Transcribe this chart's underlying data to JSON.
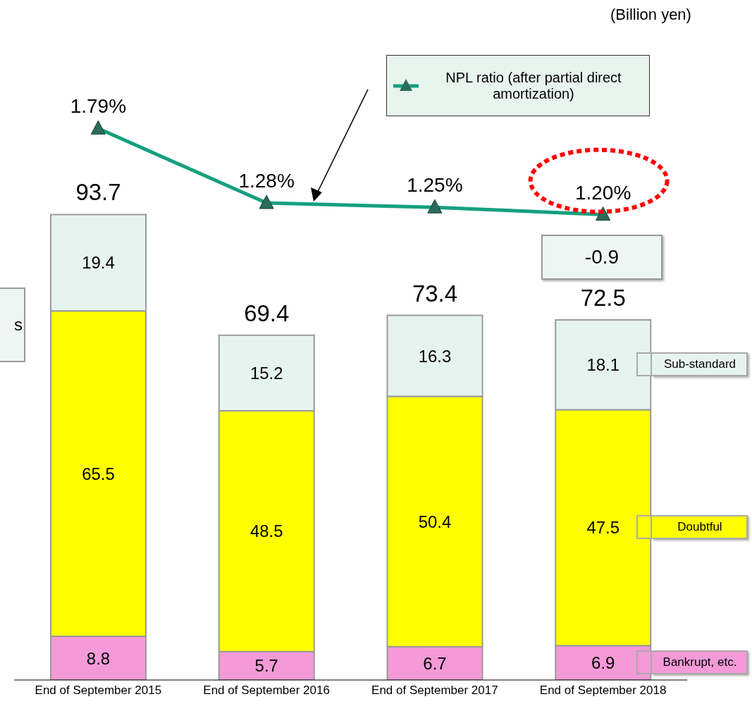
{
  "chart_data": {
    "type": "bar",
    "stacked": true,
    "data_labels": true,
    "legend": "right",
    "marker": "triangle",
    "categories": [
      "End of September 2015",
      "End of September 2016",
      "End of September 2017",
      "End of September 2018"
    ],
    "series": [
      {
        "name": "Bankrupt, etc.",
        "color": "#f49ad8",
        "values": [
          8.8,
          5.7,
          6.7,
          6.9
        ]
      },
      {
        "name": "Doubtful",
        "color": "#ffff00",
        "values": [
          65.5,
          48.5,
          50.4,
          47.5
        ]
      },
      {
        "name": "Sub-standard",
        "color": "#e6f4f0",
        "values": [
          19.4,
          15.2,
          16.3,
          18.1
        ]
      },
      {
        "name": "NPL ratio (after partial direct amortization)",
        "type": "line",
        "axis": "y2",
        "color": "#15a07f",
        "values": [
          1.79,
          1.28,
          1.25,
          1.2
        ],
        "value_labels": [
          "1.79%",
          "1.28%",
          "1.25%",
          "1.20%"
        ]
      }
    ],
    "totals": [
      "93.7",
      "69.4",
      "73.4",
      "72.5"
    ],
    "annotations": [
      "(Billion yen)",
      "-0.9",
      "s"
    ]
  }
}
